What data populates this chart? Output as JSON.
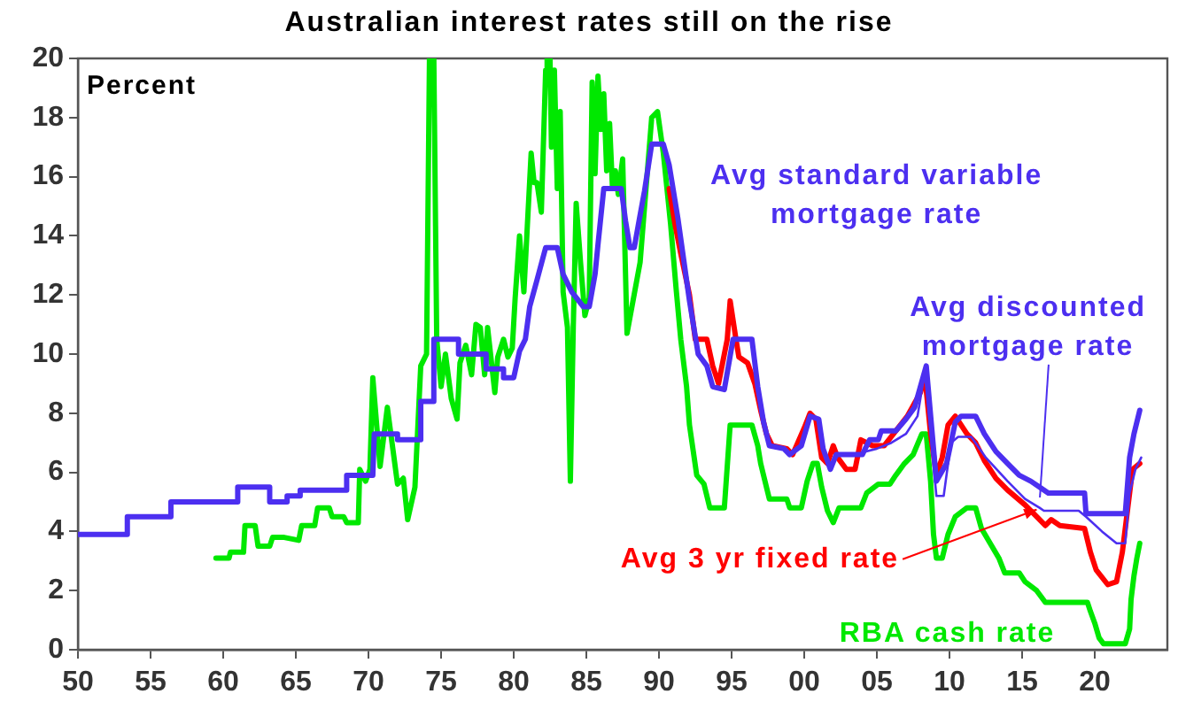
{
  "chart_data": {
    "type": "line",
    "title": "Australian interest rates still on the rise",
    "ylabel": "Percent",
    "xlim": [
      1950,
      2025
    ],
    "xticks": [
      {
        "value": 1950,
        "label": "50"
      },
      {
        "value": 1955,
        "label": "55"
      },
      {
        "value": 1960,
        "label": "60"
      },
      {
        "value": 1965,
        "label": "65"
      },
      {
        "value": 1970,
        "label": "70"
      },
      {
        "value": 1975,
        "label": "75"
      },
      {
        "value": 1980,
        "label": "80"
      },
      {
        "value": 1985,
        "label": "85"
      },
      {
        "value": 1990,
        "label": "90"
      },
      {
        "value": 1995,
        "label": "95"
      },
      {
        "value": 2000,
        "label": "00"
      },
      {
        "value": 2005,
        "label": "05"
      },
      {
        "value": 2010,
        "label": "10"
      },
      {
        "value": 2015,
        "label": "15"
      },
      {
        "value": 2020,
        "label": "20"
      }
    ],
    "ylim": [
      0,
      20
    ],
    "yticks": [
      0,
      2,
      4,
      6,
      8,
      10,
      12,
      14,
      16,
      18,
      20
    ],
    "series": [
      {
        "name": "Avg standard variable mortgage rate",
        "color": "#4c2ff0",
        "x": [
          1950,
          1953.4,
          1953.4,
          1956.4,
          1956.4,
          1961,
          1961,
          1963.2,
          1963.2,
          1964.4,
          1964.4,
          1965.3,
          1965.3,
          1968.5,
          1968.5,
          1970.3,
          1970.4,
          1972,
          1972,
          1973.6,
          1973.6,
          1974.5,
          1974.5,
          1976.2,
          1976.2,
          1978.1,
          1978.1,
          1979.3,
          1979.3,
          1980,
          1980.4,
          1980.8,
          1981.1,
          1981.6,
          1982.2,
          1983,
          1983.4,
          1984,
          1984.8,
          1985.2,
          1985.6,
          1985.8,
          1986.2,
          1987.4,
          1987.7,
          1988,
          1988.3,
          1988.7,
          1989,
          1989.5,
          1990.3,
          1990.7,
          1991.3,
          1992.1,
          1992.7,
          1993.3,
          1993.7,
          1994.5,
          1995.1,
          1996.4,
          1996.8,
          1997.2,
          1997.6,
          1998.6,
          1999,
          1999.8,
          2000.4,
          2001,
          2001.3,
          2001.8,
          2002.2,
          2004,
          2004.5,
          2005.1,
          2005.3,
          2006.3,
          2007,
          2007.6,
          2008.4,
          2009.1,
          2009.8,
          2010.4,
          2010.8,
          2011.8,
          2012.4,
          2013.2,
          2014,
          2014.8,
          2015.6,
          2016.2,
          2016.8,
          2019.3,
          2019.4,
          2022.1,
          2022.4,
          2022.7,
          2023.1
        ],
        "values": [
          3.9,
          3.9,
          4.5,
          4.5,
          5,
          5,
          5.5,
          5.5,
          5,
          5,
          5.2,
          5.2,
          5.4,
          5.4,
          5.9,
          5.9,
          7.3,
          7.3,
          7.1,
          7.1,
          8.4,
          8.4,
          10.5,
          10.5,
          10,
          10,
          9.5,
          9.5,
          9.2,
          9.2,
          10.1,
          10.5,
          11.6,
          12.5,
          13.6,
          13.6,
          12.7,
          12.1,
          11.6,
          11.6,
          12.7,
          13.7,
          15.6,
          15.6,
          14.5,
          13.6,
          13.6,
          14.7,
          15.5,
          17.1,
          17.1,
          16.4,
          14.6,
          11.8,
          10,
          9.6,
          8.9,
          8.8,
          10.5,
          10.5,
          8.9,
          7.7,
          6.9,
          6.8,
          6.6,
          6.9,
          7.9,
          7.8,
          6.8,
          6.1,
          6.6,
          6.6,
          7.1,
          7.1,
          7.4,
          7.4,
          7.8,
          8.2,
          9.6,
          5.7,
          6.3,
          7.7,
          7.9,
          7.9,
          7.3,
          6.7,
          6.3,
          5.9,
          5.7,
          5.5,
          5.3,
          5.3,
          4.6,
          4.6,
          6.5,
          7.3,
          8.1
        ]
      },
      {
        "name": "Avg discounted mortgage rate",
        "color": "#4c2ff0",
        "x": [
          2004.2,
          2005,
          2006,
          2007,
          2007.8,
          2008.3,
          2009.1,
          2009.6,
          2010.1,
          2010.6,
          2011.5,
          2012.5,
          2014,
          2015.2,
          2016.2,
          2016.5,
          2018.9,
          2019.4,
          2020.5,
          2021.5,
          2022.1,
          2022.4,
          2022.8,
          2023.2
        ],
        "values": [
          6.7,
          6.8,
          7,
          7.3,
          7.9,
          9.4,
          5.2,
          5.2,
          7,
          7.2,
          7.2,
          6.5,
          5.7,
          5.1,
          4.8,
          4.7,
          4.7,
          4.5,
          4,
          3.6,
          3.6,
          5.3,
          6.1,
          6.5
        ]
      },
      {
        "name": "Avg 3 yr fixed rate",
        "color": "#ff0000",
        "x": [
          1990.7,
          1991.1,
          1991.5,
          1992.1,
          1992.5,
          1993.3,
          1993.7,
          1994.1,
          1994.7,
          1994.9,
          1995.3,
          1995.5,
          1996.1,
          1996.6,
          1997,
          1997.4,
          1997.8,
          1998.8,
          1999.2,
          2000,
          2000.4,
          2000.8,
          2001.2,
          2001.6,
          2002,
          2002.3,
          2002.9,
          2003.5,
          2003.9,
          2004.7,
          2005.5,
          2006.3,
          2007.1,
          2008,
          2008.3,
          2008.7,
          2009.1,
          2009.5,
          2009.9,
          2010.4,
          2010.8,
          2011.2,
          2011.8,
          2012.4,
          2013.2,
          2014,
          2015.2,
          2016,
          2016.6,
          2017,
          2017.6,
          2019.3,
          2019.7,
          2020.1,
          2020.9,
          2021.5,
          2021.9,
          2022.3,
          2022.6,
          2023.1
        ],
        "values": [
          15.6,
          14.4,
          13.4,
          12,
          10.5,
          10.5,
          9.6,
          9,
          10.5,
          11.8,
          10.5,
          9.9,
          9.7,
          9,
          8.1,
          7.3,
          6.9,
          6.8,
          6.6,
          7.5,
          8,
          7.8,
          6.5,
          6.3,
          6.9,
          6.5,
          6.1,
          6.1,
          7.1,
          6.9,
          6.9,
          7.4,
          7.9,
          8.7,
          9.3,
          7.3,
          5.9,
          6.5,
          7.6,
          7.9,
          7.6,
          7.3,
          7,
          6.4,
          5.8,
          5.4,
          4.9,
          4.5,
          4.2,
          4.4,
          4.2,
          4.1,
          3.3,
          2.7,
          2.2,
          2.3,
          3.3,
          4.9,
          6.1,
          6.3
        ]
      },
      {
        "name": "RBA cash rate",
        "color": "#00e800",
        "x": [
          1959.5,
          1960.4,
          1960.5,
          1961.4,
          1961.5,
          1962.2,
          1962.4,
          1963.2,
          1963.4,
          1964.2,
          1965.2,
          1965.4,
          1966.3,
          1966.5,
          1967.3,
          1967.5,
          1968.3,
          1968.5,
          1969.3,
          1969.4,
          1969.8,
          1970.1,
          1970.3,
          1970.8,
          1971.3,
          1972,
          1972.4,
          1972.7,
          1973.2,
          1973.6,
          1974,
          1974.2,
          1974.5,
          1974.7,
          1975,
          1975.3,
          1975.7,
          1976.1,
          1976.3,
          1976.7,
          1977.1,
          1977.4,
          1977.7,
          1978,
          1978.2,
          1978.7,
          1978.9,
          1979.3,
          1979.6,
          1979.9,
          1980.1,
          1980.4,
          1980.7,
          1981.2,
          1981.4,
          1981.6,
          1981.9,
          1982.2,
          1982.3,
          1982.5,
          1982.6,
          1982.8,
          1983,
          1983.2,
          1983.4,
          1983.7,
          1983.9,
          1984.1,
          1984.3,
          1984.6,
          1984.9,
          1985.2,
          1985.4,
          1985.6,
          1985.8,
          1986,
          1986.2,
          1986.4,
          1986.6,
          1986.8,
          1987,
          1987.2,
          1987.5,
          1987.8,
          1988.7,
          1989.5,
          1989.9,
          1990.3,
          1990.8,
          1991.2,
          1991.5,
          1991.9,
          1992.1,
          1992.6,
          1993.1,
          1993.5,
          1994.5,
          1994.9,
          1996.4,
          1996.8,
          1997,
          1997.2,
          1997.6,
          1998.8,
          1999,
          1999.8,
          2000.2,
          2000.6,
          2000.9,
          2001.2,
          2001.6,
          2002,
          2002.4,
          2003.9,
          2004.3,
          2005.1,
          2005.9,
          2006.3,
          2006.9,
          2007.5,
          2008.1,
          2008.4,
          2008.7,
          2008.9,
          2009.1,
          2009.5,
          2009.9,
          2010.4,
          2011.2,
          2011.8,
          2012.2,
          2012.8,
          2013.4,
          2013.8,
          2014.8,
          2015.2,
          2016,
          2016.6,
          2019.5,
          2019.7,
          2020,
          2020.3,
          2020.6,
          2022.1,
          2022.4,
          2022.5,
          2022.7,
          2022.9,
          2023.1
        ],
        "values": [
          3.1,
          3.1,
          3.3,
          3.3,
          4.2,
          4.2,
          3.5,
          3.5,
          3.8,
          3.8,
          3.7,
          4.2,
          4.2,
          4.8,
          4.8,
          4.5,
          4.5,
          4.3,
          4.3,
          6.1,
          5.7,
          6.1,
          9.2,
          6.2,
          8.2,
          5.6,
          5.8,
          4.4,
          5.5,
          9.6,
          10,
          20,
          20,
          10.5,
          8.9,
          10,
          8.5,
          7.8,
          9.7,
          10.3,
          9.3,
          11,
          10.9,
          9.3,
          10.9,
          8.7,
          9.9,
          10.5,
          9.9,
          10.2,
          11.9,
          14,
          12.1,
          16.8,
          15.8,
          15.8,
          14.8,
          19.6,
          20,
          20,
          17,
          19.6,
          15.6,
          18.2,
          12.1,
          10.9,
          5.7,
          10.9,
          15.1,
          13.1,
          11.3,
          11.9,
          19.2,
          16.1,
          19.4,
          17.6,
          18.8,
          16.2,
          17.8,
          15.6,
          16.2,
          15.4,
          16.6,
          10.7,
          13.1,
          18,
          18.2,
          16.8,
          14.4,
          12.1,
          10.5,
          8.9,
          7.6,
          5.9,
          5.6,
          4.8,
          4.8,
          7.6,
          7.6,
          6.9,
          6.3,
          5.9,
          5.1,
          5.1,
          4.8,
          4.8,
          5.7,
          6.3,
          6.3,
          5.5,
          4.7,
          4.3,
          4.8,
          4.8,
          5.3,
          5.6,
          5.6,
          5.9,
          6.3,
          6.6,
          7.3,
          7.3,
          5.7,
          3.9,
          3.1,
          3.1,
          3.9,
          4.5,
          4.8,
          4.8,
          4.1,
          3.6,
          3.1,
          2.6,
          2.6,
          2.3,
          2,
          1.6,
          1.6,
          1.3,
          0.9,
          0.4,
          0.2,
          0.2,
          0.7,
          1.7,
          2.5,
          3.1,
          3.6
        ]
      }
    ]
  }
}
